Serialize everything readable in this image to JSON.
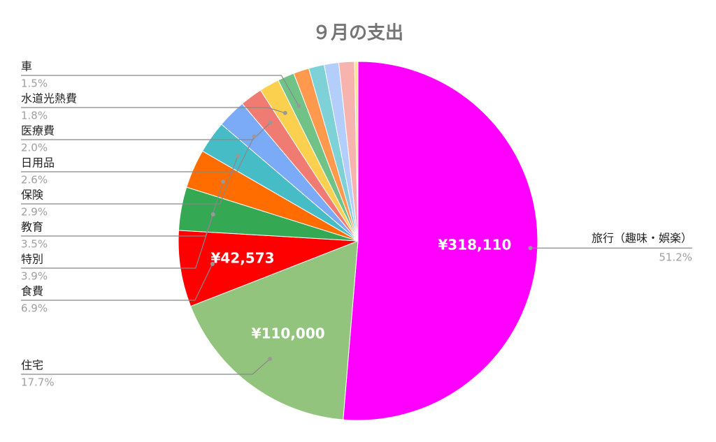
{
  "chart_data": {
    "type": "pie",
    "title": "９月の支出",
    "categories": [
      "旅行（趣味・娯楽）",
      "住宅",
      "食費",
      "特別",
      "教育",
      "保険",
      "日用品",
      "医療費",
      "水道光熱費",
      "車",
      null,
      null,
      null,
      null,
      null
    ],
    "values": [
      318110,
      110000,
      42573,
      24231,
      21746,
      18018,
      16154,
      12426,
      11184,
      9320,
      8700,
      8700,
      8100,
      8700,
      1900
    ],
    "value_labels": [
      "¥318,110",
      "¥110,000",
      "¥42,573",
      null,
      null,
      null,
      null,
      null,
      null,
      null,
      null,
      null,
      null,
      null,
      null
    ],
    "percent_labels": [
      "51.2%",
      "17.7%",
      "6.9%",
      "3.9%",
      "3.5%",
      "2.9%",
      "2.6%",
      "2.0%",
      "1.8%",
      "1.5%",
      null,
      null,
      null,
      null,
      null
    ],
    "colors": [
      "#ff00ff",
      "#93c47d",
      "#ff0000",
      "#34a853",
      "#ff6d01",
      "#46bdc6",
      "#7baaf7",
      "#f07b72",
      "#fcd04f",
      "#71c287",
      "#ff994d",
      "#7ed1d7",
      "#b3cefb",
      "#f7b4ae",
      "#fde49b"
    ]
  }
}
